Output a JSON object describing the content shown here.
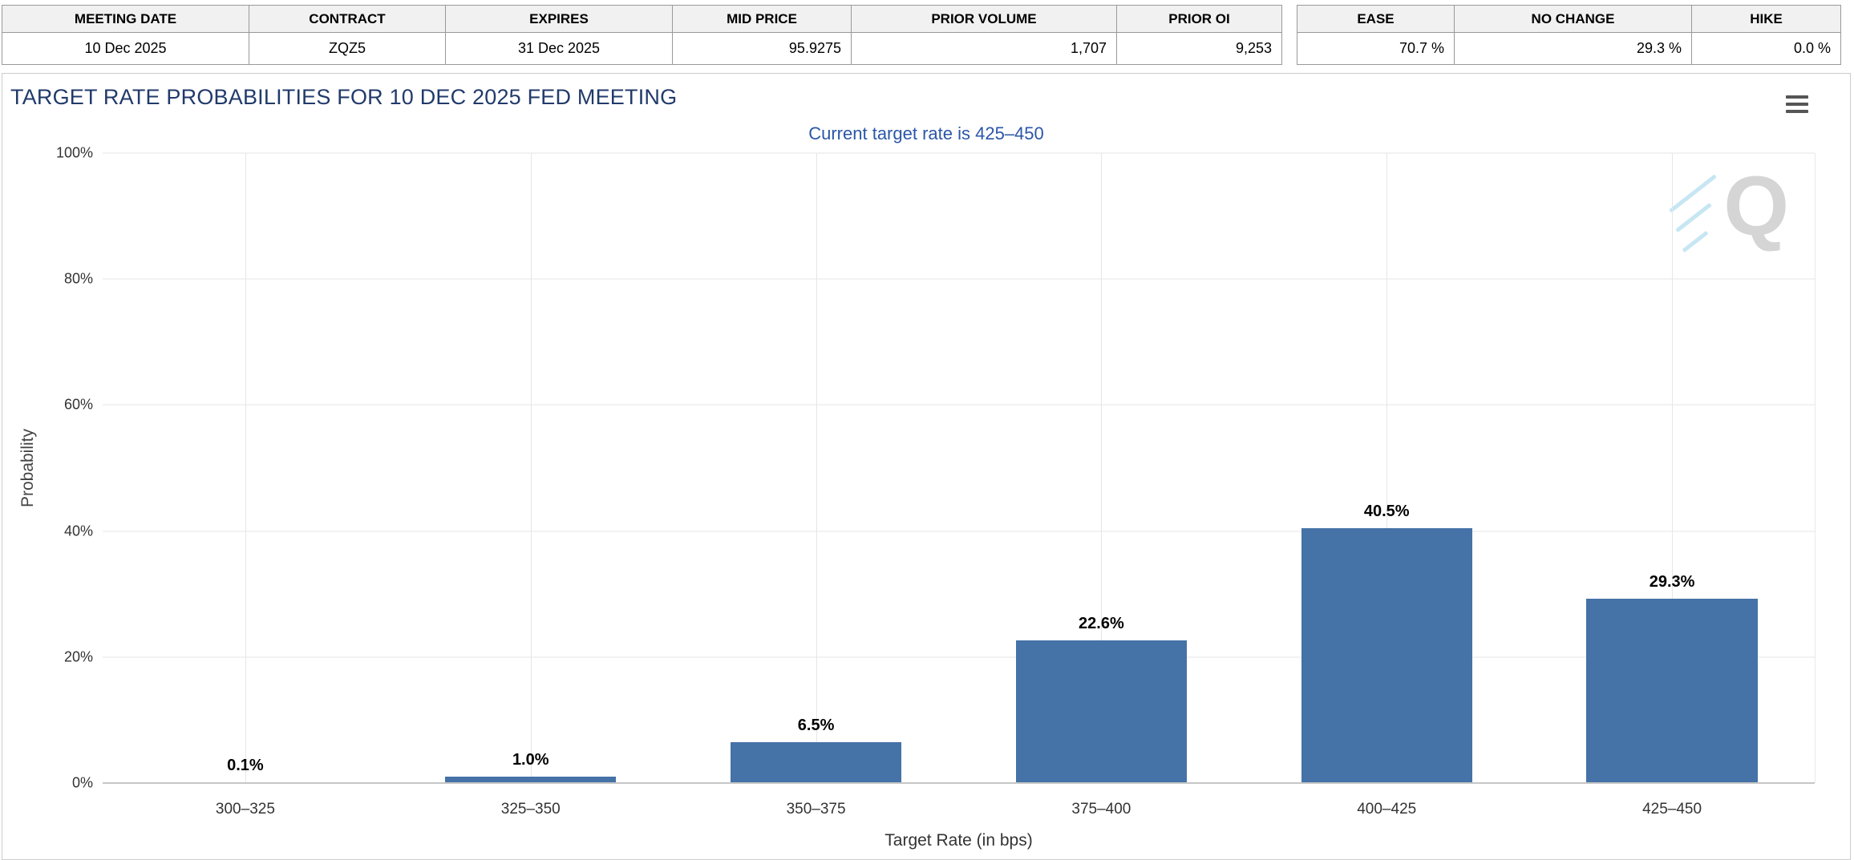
{
  "contract_table": {
    "headers": [
      "MEETING DATE",
      "CONTRACT",
      "EXPIRES",
      "MID PRICE",
      "PRIOR VOLUME",
      "PRIOR OI"
    ],
    "row": [
      "10 Dec 2025",
      "ZQZ5",
      "31 Dec 2025",
      "95.9275",
      "1,707",
      "9,253"
    ]
  },
  "probability_summary": {
    "headers": [
      "EASE",
      "NO CHANGE",
      "HIKE"
    ],
    "row": [
      "70.7 %",
      "29.3 %",
      "0.0 %"
    ]
  },
  "chart": {
    "title": "TARGET RATE PROBABILITIES FOR 10 DEC 2025 FED MEETING",
    "subtitle": "Current target rate is 425–450",
    "watermark_letter": "Q"
  },
  "chart_data": {
    "type": "bar",
    "title": "TARGET RATE PROBABILITIES FOR 10 DEC 2025 FED MEETING",
    "subtitle": "Current target rate is 425–450",
    "xlabel": "Target Rate (in bps)",
    "ylabel": "Probability",
    "categories": [
      "300–325",
      "325–350",
      "350–375",
      "375–400",
      "400–425",
      "425–450"
    ],
    "values": [
      0.1,
      1.0,
      6.5,
      22.6,
      40.5,
      29.3
    ],
    "value_labels": [
      "0.1%",
      "1.0%",
      "6.5%",
      "22.6%",
      "40.5%",
      "29.3%"
    ],
    "ylim": [
      0,
      100
    ],
    "ytick_values": [
      0,
      20,
      40,
      60,
      80,
      100
    ],
    "ytick_labels": [
      "0%",
      "20%",
      "40%",
      "60%",
      "80%",
      "100%"
    ],
    "bar_color": "#4572a7",
    "grid": true,
    "legend": "none"
  }
}
